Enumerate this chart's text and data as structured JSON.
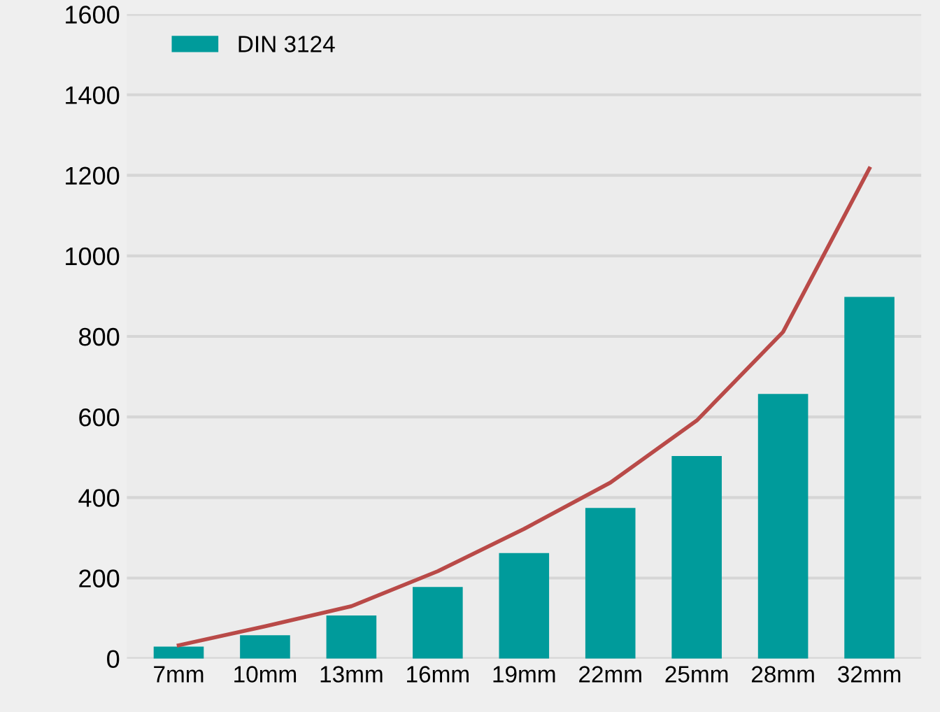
{
  "chart_data": {
    "type": "bar",
    "categories": [
      "7mm",
      "10mm",
      "13mm",
      "16mm",
      "19mm",
      "22mm",
      "25mm",
      "28mm",
      "32mm"
    ],
    "series": [
      {
        "name": "DIN 3124",
        "color": "#009b9b",
        "values": [
          30,
          58,
          107,
          178,
          262,
          374,
          503,
          657,
          898
        ]
      },
      {
        "type": "line",
        "color": "#b94a48",
        "values": [
          33,
          80,
          130,
          217,
          322,
          437,
          591,
          811,
          1217
        ]
      }
    ],
    "ylim": [
      0,
      1600
    ],
    "yticks": [
      0,
      200,
      400,
      600,
      800,
      1000,
      1200,
      1400,
      1600
    ],
    "grid": "y",
    "legend": "top left"
  }
}
